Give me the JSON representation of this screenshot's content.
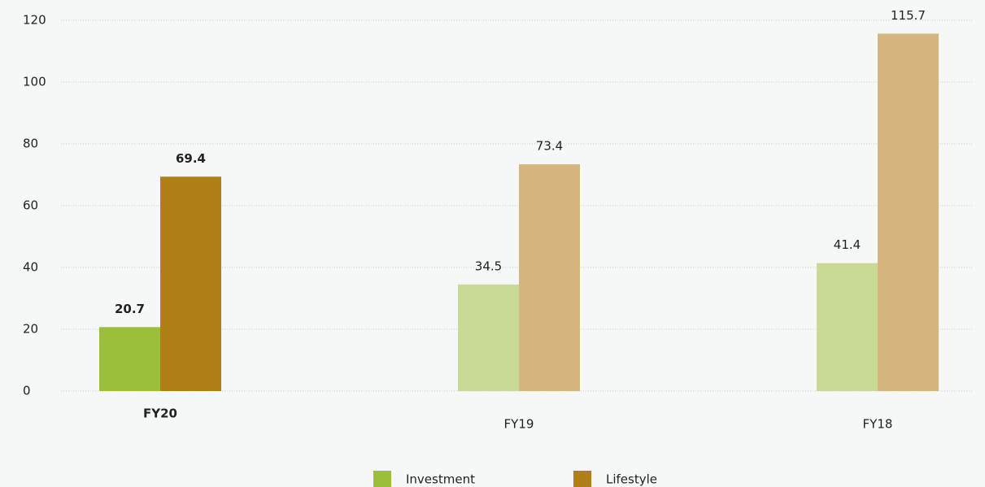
{
  "chart_data": {
    "type": "bar",
    "categories": [
      "FY20",
      "FY19",
      "FY18"
    ],
    "series": [
      {
        "name": "Investment",
        "color": "#9bbf3b",
        "colors": [
          "#9bbf3b",
          "#c9d996",
          "#c9d996"
        ],
        "values": [
          20.7,
          34.5,
          41.4
        ]
      },
      {
        "name": "Lifestyle",
        "color": "#b07f18",
        "colors": [
          "#b07f18",
          "#d4b67e",
          "#d4b67e"
        ],
        "values": [
          69.4,
          73.4,
          115.7
        ]
      }
    ],
    "ylim": [
      0,
      120
    ],
    "yticks": [
      0,
      20,
      40,
      60,
      80,
      100,
      120
    ],
    "grid": true,
    "legend": "bottom"
  }
}
